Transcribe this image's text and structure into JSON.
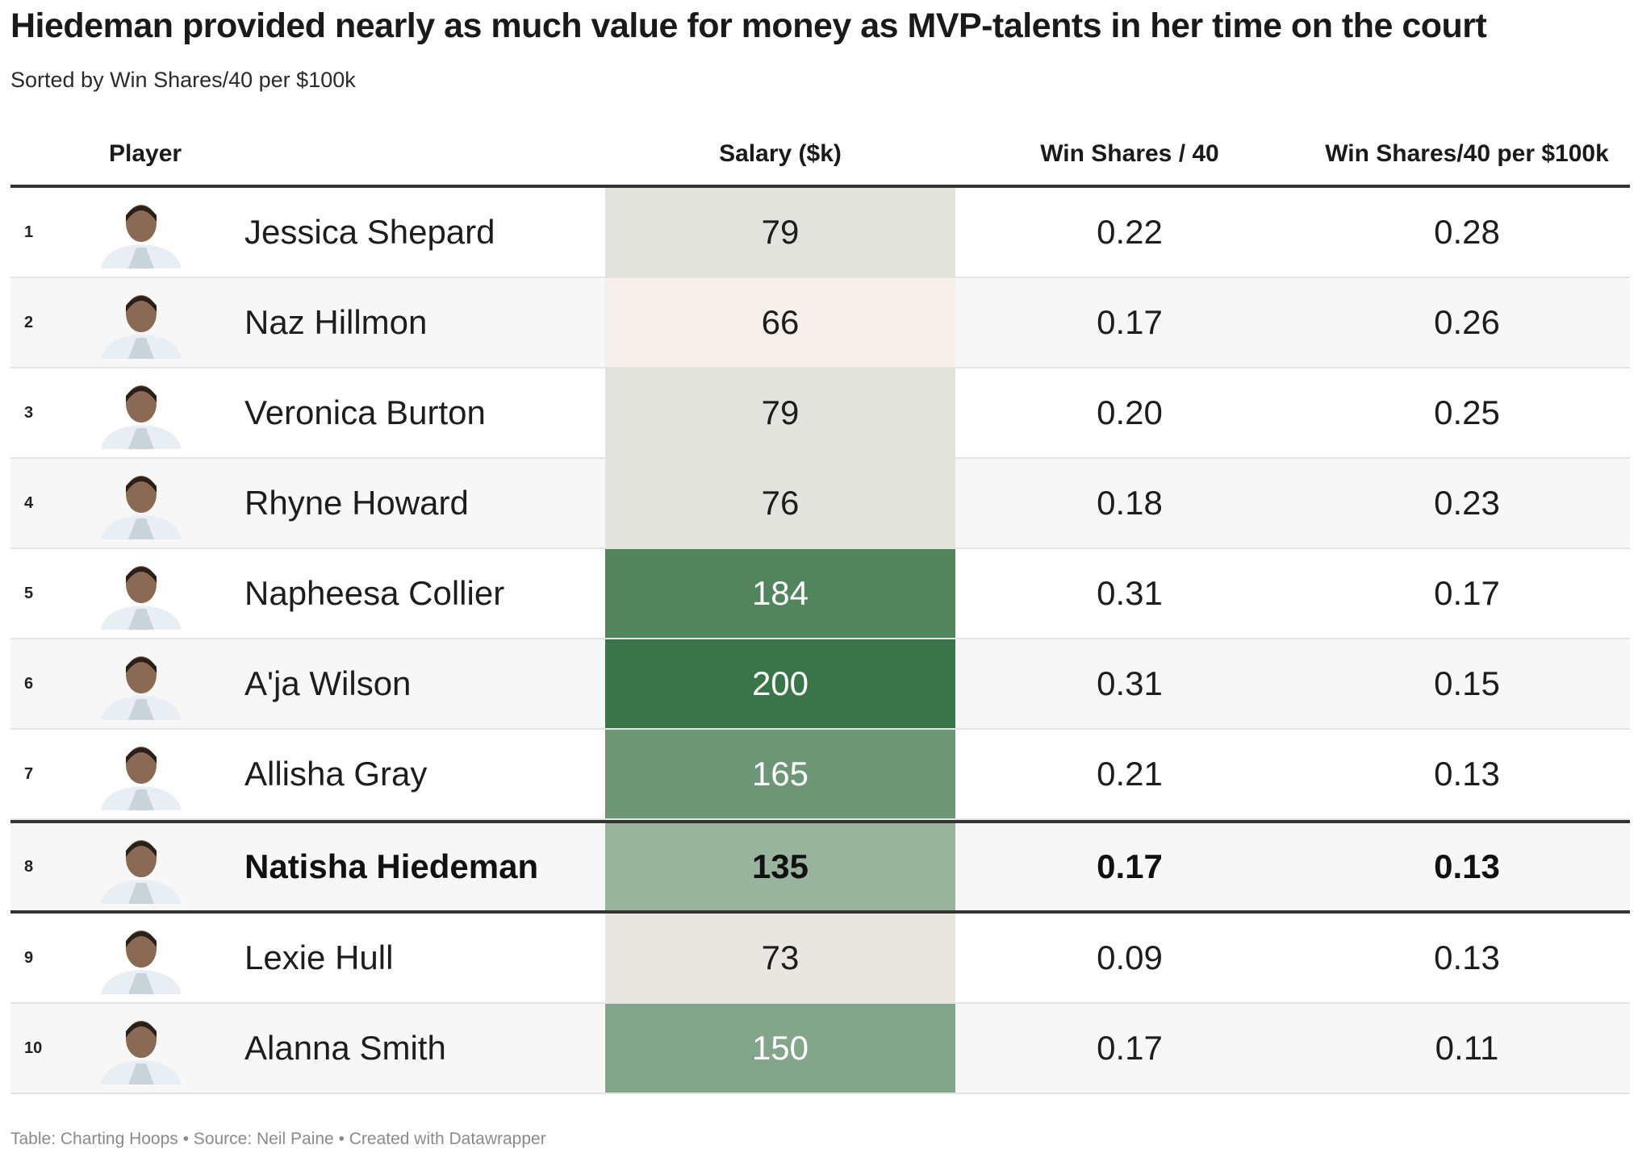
{
  "title": "Hiedeman provided nearly as much value for money as MVP-talents in her time on the court",
  "subtitle": "Sorted by Win Shares/40 per $100k",
  "footer": "Table: Charting Hoops • Source: Neil Paine • Created with Datawrapper",
  "columns": {
    "player": "Player",
    "salary": "Salary ($k)",
    "ws40": "Win Shares / 40",
    "ws40_per_100k": "Win Shares/40 per $100k"
  },
  "colors": {
    "header_rule": "#333333",
    "salary_low": "#f5efec",
    "salary_mid": "#e3e3de",
    "salary_high": "#3a7549"
  },
  "chart_data": {
    "type": "table",
    "title": "Hiedeman provided nearly as much value for money as MVP-talents in her time on the court",
    "subtitle": "Sorted by Win Shares/40 per $100k",
    "columns": [
      "Player",
      "Salary ($k)",
      "Win Shares / 40",
      "Win Shares/40 per $100k"
    ],
    "rows": [
      {
        "rank": "1",
        "player": "Jessica Shepard",
        "salary": "79",
        "ws40": "0.22",
        "ws40_per_100k": "0.28",
        "highlight": false,
        "avatar_icon": "player-headshot-icon"
      },
      {
        "rank": "2",
        "player": "Naz Hillmon",
        "salary": "66",
        "ws40": "0.17",
        "ws40_per_100k": "0.26",
        "highlight": false,
        "avatar_icon": "player-headshot-icon"
      },
      {
        "rank": "3",
        "player": "Veronica Burton",
        "salary": "79",
        "ws40": "0.20",
        "ws40_per_100k": "0.25",
        "highlight": false,
        "avatar_icon": "player-headshot-icon"
      },
      {
        "rank": "4",
        "player": "Rhyne Howard",
        "salary": "76",
        "ws40": "0.18",
        "ws40_per_100k": "0.23",
        "highlight": false,
        "avatar_icon": "player-headshot-icon"
      },
      {
        "rank": "5",
        "player": "Napheesa Collier",
        "salary": "184",
        "ws40": "0.31",
        "ws40_per_100k": "0.17",
        "highlight": false,
        "avatar_icon": "player-headshot-icon"
      },
      {
        "rank": "6",
        "player": "A'ja Wilson",
        "salary": "200",
        "ws40": "0.31",
        "ws40_per_100k": "0.15",
        "highlight": false,
        "avatar_icon": "player-headshot-icon"
      },
      {
        "rank": "7",
        "player": "Allisha Gray",
        "salary": "165",
        "ws40": "0.21",
        "ws40_per_100k": "0.13",
        "highlight": false,
        "avatar_icon": "player-headshot-icon"
      },
      {
        "rank": "8",
        "player": "Natisha Hiedeman",
        "salary": "135",
        "ws40": "0.17",
        "ws40_per_100k": "0.13",
        "highlight": true,
        "avatar_icon": "player-headshot-icon"
      },
      {
        "rank": "9",
        "player": "Lexie Hull",
        "salary": "73",
        "ws40": "0.09",
        "ws40_per_100k": "0.13",
        "highlight": false,
        "avatar_icon": "player-headshot-icon"
      },
      {
        "rank": "10",
        "player": "Alanna Smith",
        "salary": "150",
        "ws40": "0.17",
        "ws40_per_100k": "0.11",
        "highlight": false,
        "avatar_icon": "player-headshot-icon"
      }
    ]
  }
}
